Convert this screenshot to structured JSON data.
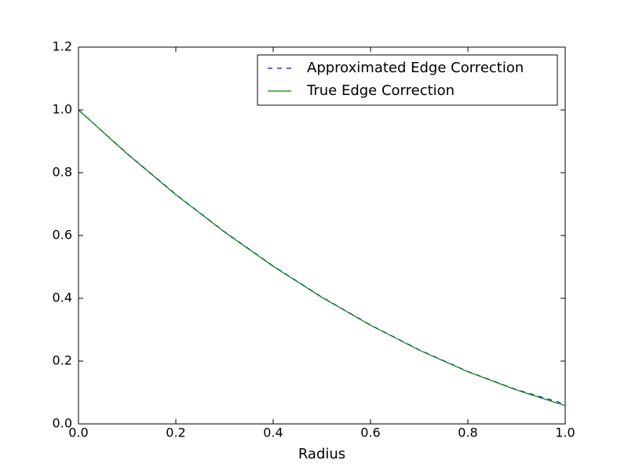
{
  "chart_data": {
    "type": "line",
    "x_label": "Radius",
    "x": [
      0.0,
      0.1,
      0.2,
      0.3,
      0.4,
      0.5,
      0.6,
      0.7,
      0.8,
      0.9,
      1.0
    ],
    "series": [
      {
        "name": "Approximated Edge Correction",
        "color": "#0000ff",
        "linestyle": "dashed",
        "values": [
          1.0,
          0.861,
          0.731,
          0.612,
          0.503,
          0.404,
          0.315,
          0.236,
          0.167,
          0.109,
          0.063
        ]
      },
      {
        "name": "True Edge Correction",
        "color": "#008000",
        "linestyle": "solid",
        "values": [
          1.0,
          0.86,
          0.73,
          0.611,
          0.502,
          0.403,
          0.314,
          0.235,
          0.166,
          0.108,
          0.058
        ]
      }
    ],
    "xlim": [
      0.0,
      1.0
    ],
    "ylim": [
      0.0,
      1.2
    ],
    "xticks": [
      {
        "value": 0.0,
        "label": "0.0"
      },
      {
        "value": 0.2,
        "label": "0.2"
      },
      {
        "value": 0.4,
        "label": "0.4"
      },
      {
        "value": 0.6,
        "label": "0.6"
      },
      {
        "value": 0.8,
        "label": "0.8"
      },
      {
        "value": 1.0,
        "label": "1.0"
      }
    ],
    "yticks": [
      {
        "value": 0.0,
        "label": "0.0"
      },
      {
        "value": 0.2,
        "label": "0.2"
      },
      {
        "value": 0.4,
        "label": "0.4"
      },
      {
        "value": 0.6,
        "label": "0.6"
      },
      {
        "value": 0.8,
        "label": "0.8"
      },
      {
        "value": 1.0,
        "label": "1.0"
      },
      {
        "value": 1.2,
        "label": "1.2"
      }
    ],
    "legend": "upper right",
    "grid": false
  }
}
